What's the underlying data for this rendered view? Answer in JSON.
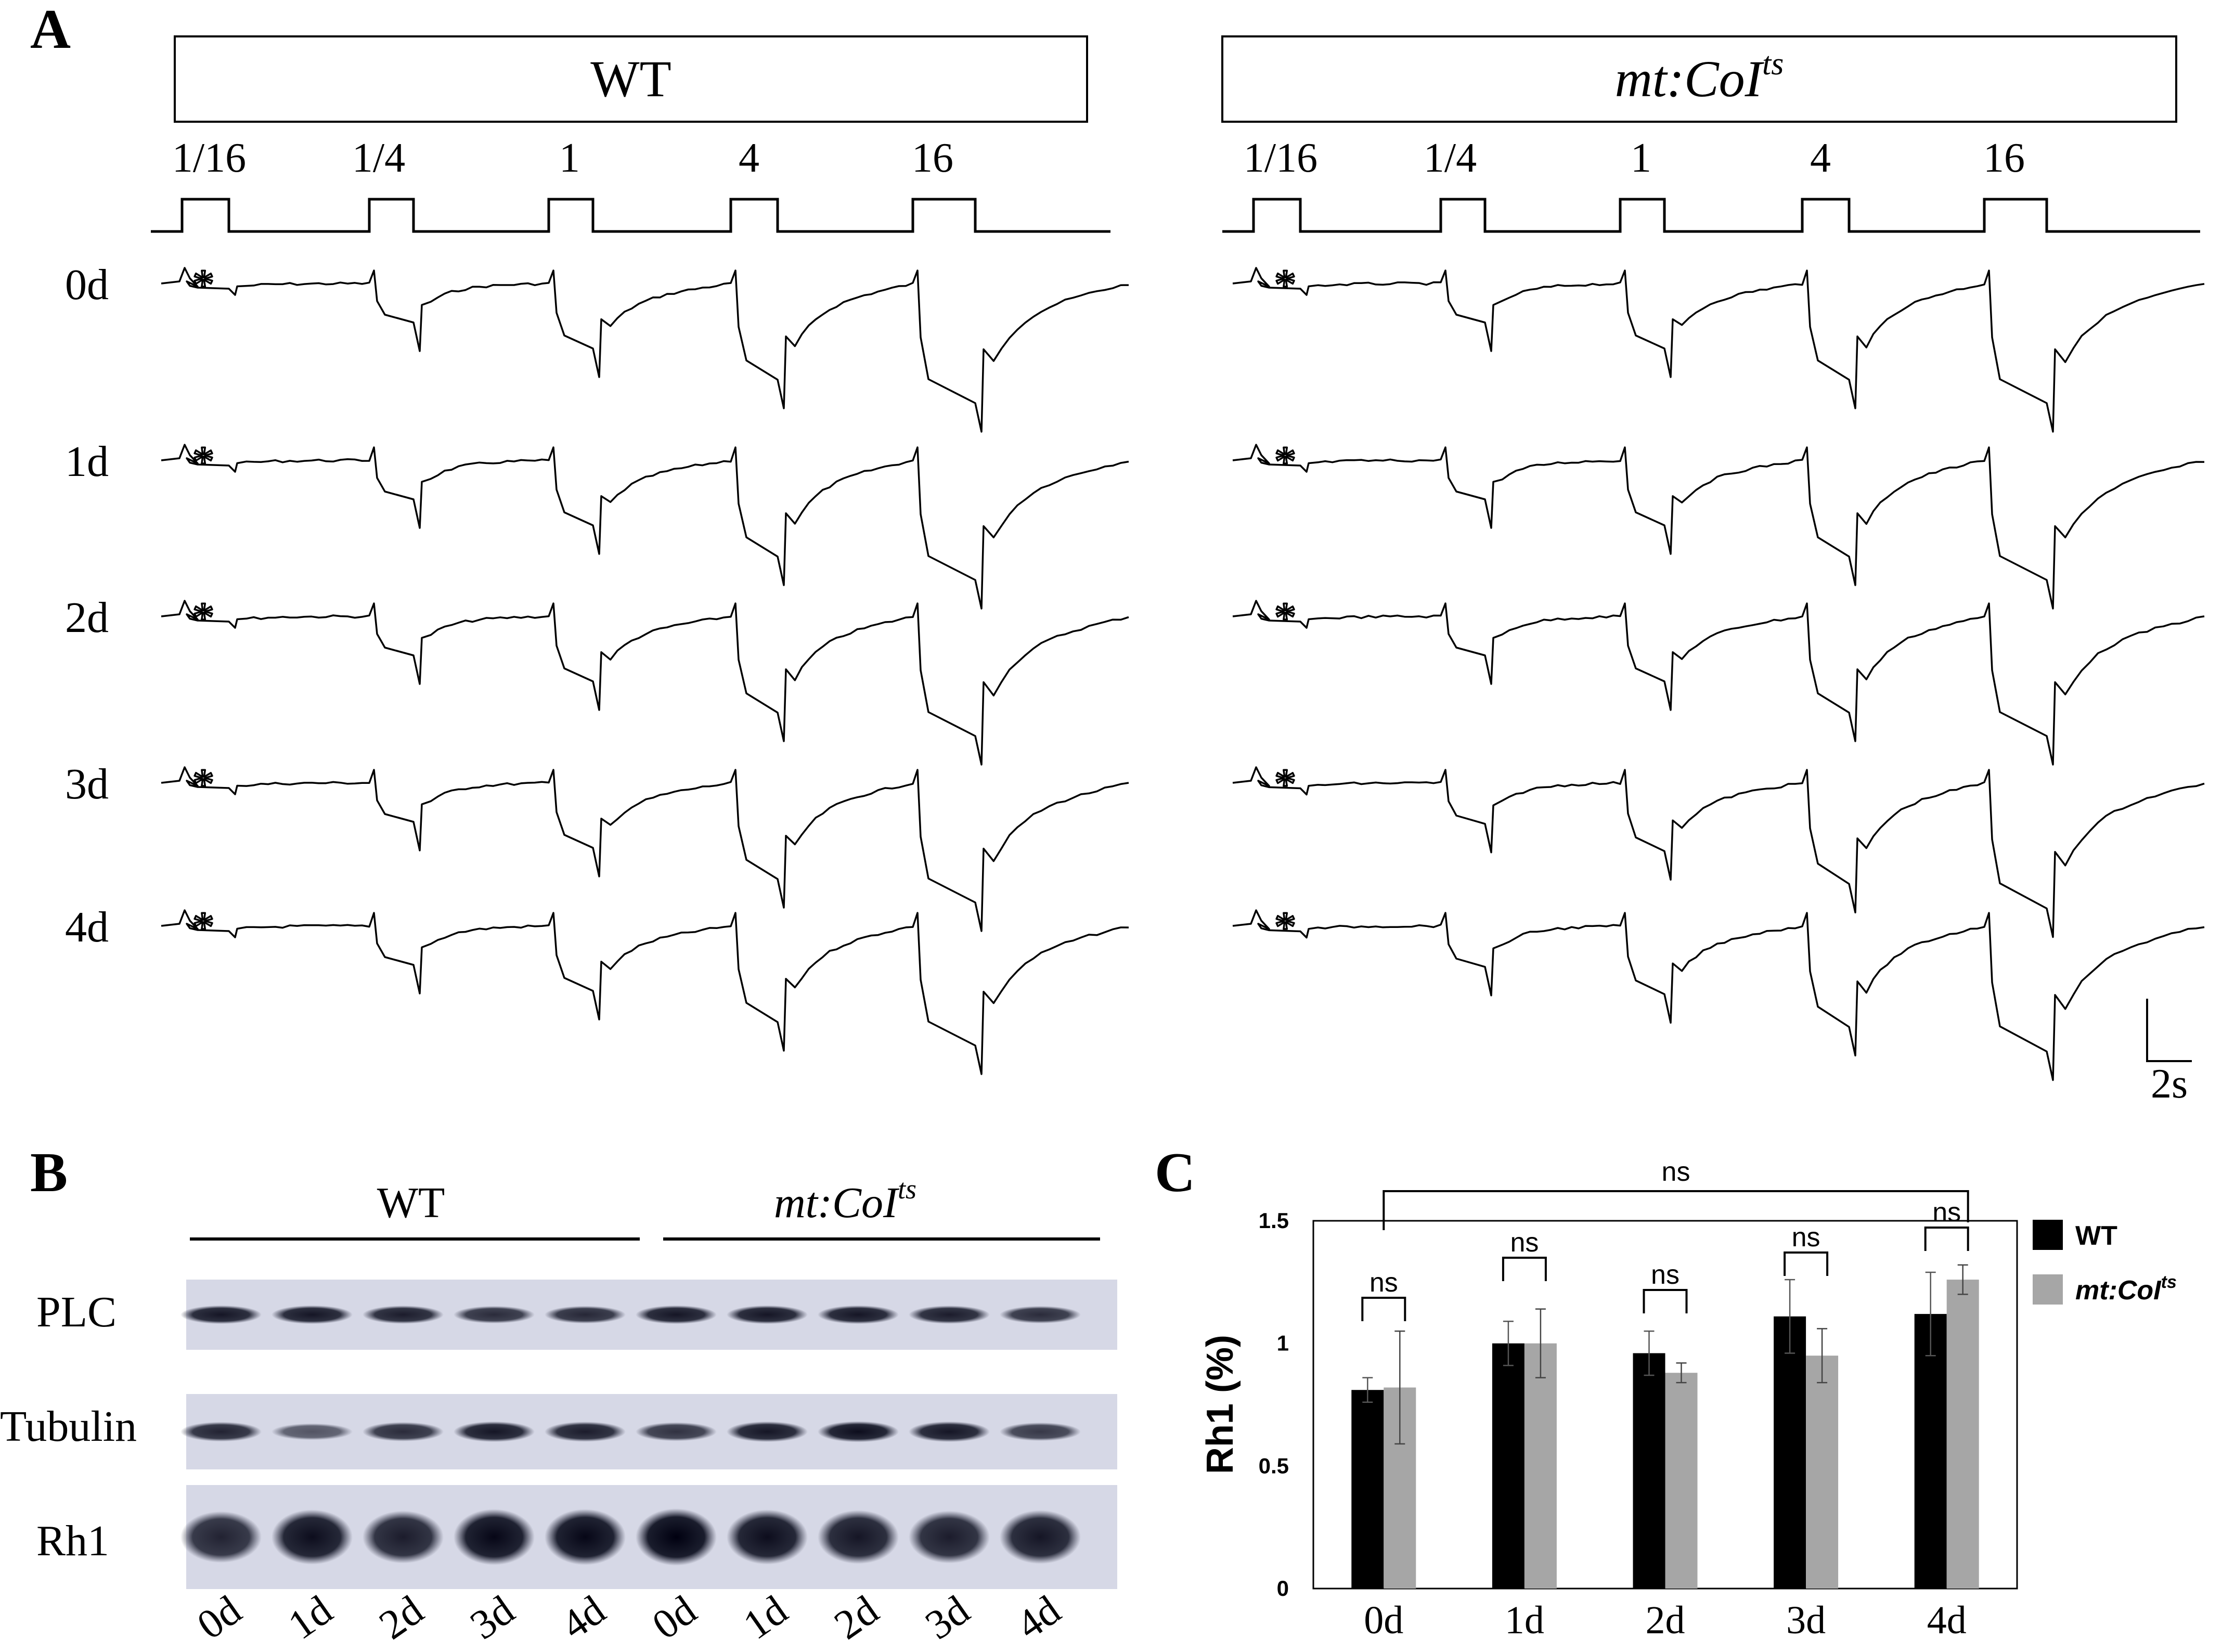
{
  "panels": {
    "A": {
      "letter": "A",
      "groups": [
        {
          "title": "WT",
          "italic": false
        },
        {
          "title": "mt:CoI",
          "sup": "ts",
          "italic": true
        }
      ],
      "stimuli": [
        "1/16",
        "1/4",
        "1",
        "4",
        "16"
      ],
      "days": [
        "0d",
        "1d",
        "2d",
        "3d",
        "4d"
      ],
      "asterisk": "*",
      "scale_label": "2s"
    },
    "B": {
      "letter": "B",
      "groups": [
        {
          "title": "WT",
          "italic": false
        },
        {
          "title": "mt:CoI",
          "sup": "ts",
          "italic": true
        }
      ],
      "rows": [
        {
          "label": "PLC",
          "intensity": [
            0.85,
            0.85,
            0.8,
            0.7,
            0.72,
            0.85,
            0.85,
            0.85,
            0.8,
            0.7
          ]
        },
        {
          "label": "Tubulin",
          "intensity": [
            0.75,
            0.4,
            0.7,
            0.85,
            0.8,
            0.65,
            0.85,
            0.9,
            0.85,
            0.6
          ]
        },
        {
          "label": "Rh1",
          "intensity": [
            0.75,
            0.9,
            0.8,
            0.95,
            0.95,
            1.0,
            0.9,
            0.85,
            0.8,
            0.85
          ]
        }
      ],
      "lanes": [
        "0d",
        "1d",
        "2d",
        "3d",
        "4d",
        "0d",
        "1d",
        "2d",
        "3d",
        "4d"
      ]
    },
    "C": {
      "letter": "C",
      "chart_data": {
        "type": "bar",
        "categories": [
          "0d",
          "1d",
          "2d",
          "3d",
          "4d"
        ],
        "series": [
          {
            "name": "WT",
            "color": "#000000",
            "values": [
              0.81,
              1.0,
              0.96,
              1.11,
              1.12
            ],
            "errors": [
              0.05,
              0.09,
              0.09,
              0.15,
              0.17
            ]
          },
          {
            "name": "mt:CoI",
            "sup": "ts",
            "color": "#a6a6a6",
            "values": [
              0.82,
              1.0,
              0.88,
              0.95,
              1.26
            ],
            "errors": [
              0.23,
              0.14,
              0.04,
              0.11,
              0.06
            ]
          }
        ],
        "ylabel": "Rh1 (%)",
        "ylim": [
          0,
          1.5
        ],
        "yticks": [
          "0",
          "0.5",
          "1",
          "1.5"
        ],
        "significance": {
          "pairs": [
            "ns",
            "ns",
            "ns",
            "ns",
            "ns"
          ],
          "overall": "ns"
        },
        "legend_position": "right"
      }
    }
  }
}
